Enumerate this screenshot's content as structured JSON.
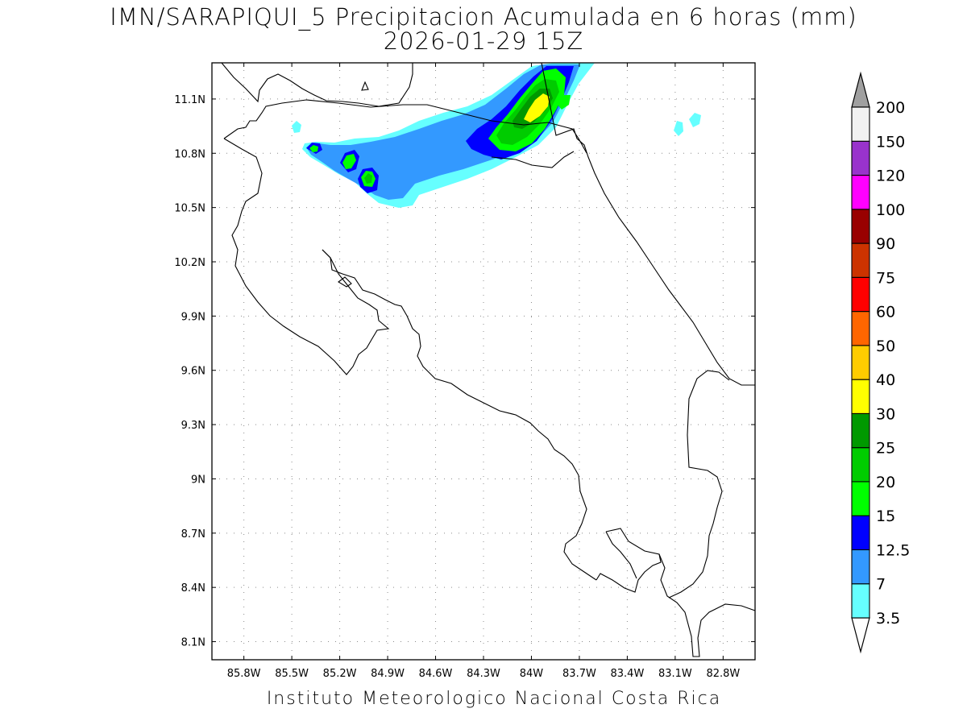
{
  "title": {
    "line1": "IMN/SARAPIQUI_5 Precipitacion Acumulada en 6 horas (mm)",
    "line2": "2026-01-29 15Z"
  },
  "credit": "Instituto Meteorologico Nacional Costa Rica",
  "map": {
    "lon_range": [
      -86.0,
      -82.6
    ],
    "lat_range": [
      8.0,
      11.3
    ],
    "grid": "dotted",
    "lon_ticks": [
      {
        "value": -85.8,
        "label": "85.8W"
      },
      {
        "value": -85.5,
        "label": "85.5W"
      },
      {
        "value": -85.2,
        "label": "85.2W"
      },
      {
        "value": -84.9,
        "label": "84.9W"
      },
      {
        "value": -84.6,
        "label": "84.6W"
      },
      {
        "value": -84.3,
        "label": "84.3W"
      },
      {
        "value": -84.0,
        "label": "84W"
      },
      {
        "value": -83.7,
        "label": "83.7W"
      },
      {
        "value": -83.4,
        "label": "83.4W"
      },
      {
        "value": -83.1,
        "label": "83.1W"
      },
      {
        "value": -82.8,
        "label": "82.8W"
      }
    ],
    "lat_ticks": [
      {
        "value": 11.1,
        "label": "11.1N"
      },
      {
        "value": 10.8,
        "label": "10.8N"
      },
      {
        "value": 10.5,
        "label": "10.5N"
      },
      {
        "value": 10.2,
        "label": "10.2N"
      },
      {
        "value": 9.9,
        "label": "9.9N"
      },
      {
        "value": 9.6,
        "label": "9.6N"
      },
      {
        "value": 9.3,
        "label": "9.3N"
      },
      {
        "value": 9.0,
        "label": "9N"
      },
      {
        "value": 8.7,
        "label": "8.7N"
      },
      {
        "value": 8.4,
        "label": "8.4N"
      },
      {
        "value": 8.1,
        "label": "8.1N"
      }
    ]
  },
  "colorbar": {
    "levels": [
      {
        "label": "3.5",
        "color": "#66ffff"
      },
      {
        "label": "7",
        "color": "#3399ff"
      },
      {
        "label": "12.5",
        "color": "#0000ff"
      },
      {
        "label": "15",
        "color": "#00ff00"
      },
      {
        "label": "20",
        "color": "#00cc00"
      },
      {
        "label": "25",
        "color": "#009900"
      },
      {
        "label": "30",
        "color": "#ffff00"
      },
      {
        "label": "40",
        "color": "#ffcc00"
      },
      {
        "label": "50",
        "color": "#ff6600"
      },
      {
        "label": "60",
        "color": "#ff0000"
      },
      {
        "label": "75",
        "color": "#cc3300"
      },
      {
        "label": "90",
        "color": "#990000"
      },
      {
        "label": "100",
        "color": "#ff00ff"
      },
      {
        "label": "120",
        "color": "#9933cc"
      },
      {
        "label": "150",
        "color": "#f2f2f2"
      },
      {
        "label": "200",
        "color": "#a0a0a0"
      }
    ],
    "under_color": "#ffffff",
    "over_color": "#a0a0a0"
  }
}
